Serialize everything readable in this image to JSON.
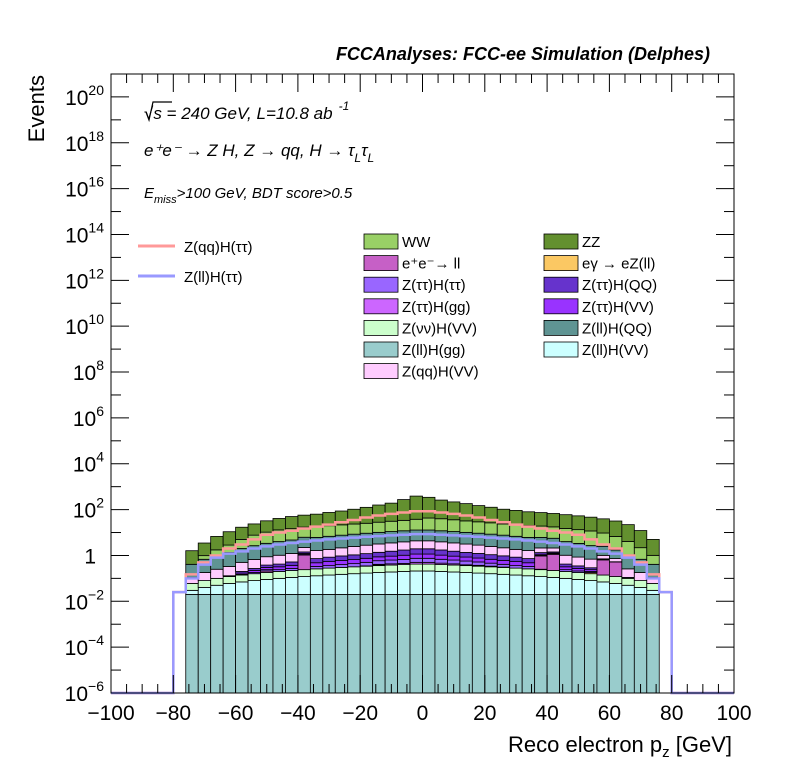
{
  "header": "FCCAnalyses: FCC-ee Simulation (Delphes)",
  "annotations": {
    "energy": "√s = 240 GeV, L=10.8 ab",
    "energy_sup": "-1",
    "process": "e⁺e⁻ → Z H, Z → qq, H → τ",
    "process_sub1": "L",
    "process_tau2": "τ",
    "process_sub2": "L",
    "cut_prefix": "E",
    "cut_sub": "miss",
    "cut_rest": ">100 GeV, BDT score>0.5"
  },
  "chart_data": {
    "type": "bar",
    "stacked": true,
    "log_y": true,
    "xlabel": "Reco electron p",
    "xlabel_sub": "z",
    "xlabel_unit": " [GeV]",
    "ylabel": "Events",
    "xlim": [
      -100,
      100
    ],
    "ylim": [
      1e-06,
      1e+21
    ],
    "x_ticks": [
      "−100",
      "−80",
      "−60",
      "−40",
      "−20",
      "0",
      "20",
      "40",
      "60",
      "80",
      "100"
    ],
    "y_ticks": [
      {
        "base": "10",
        "exp": "−6"
      },
      {
        "base": "10",
        "exp": "−4"
      },
      {
        "base": "10",
        "exp": "−2"
      },
      {
        "base": "1",
        "exp": ""
      },
      {
        "base": "10",
        "exp": "2"
      },
      {
        "base": "10",
        "exp": "4"
      },
      {
        "base": "10",
        "exp": "6"
      },
      {
        "base": "10",
        "exp": "8"
      },
      {
        "base": "10",
        "exp": "10"
      },
      {
        "base": "10",
        "exp": "12"
      },
      {
        "base": "10",
        "exp": "14"
      },
      {
        "base": "10",
        "exp": "16"
      },
      {
        "base": "10",
        "exp": "18"
      },
      {
        "base": "10",
        "exp": "20"
      }
    ],
    "bin_edges": [
      -80,
      -76,
      -72,
      -68,
      -64,
      -60,
      -56,
      -52,
      -48,
      -44,
      -40,
      -36,
      -32,
      -28,
      -24,
      -20,
      -16,
      -12,
      -8,
      -4,
      0,
      4,
      8,
      12,
      16,
      20,
      24,
      28,
      32,
      36,
      40,
      44,
      48,
      52,
      56,
      60,
      64,
      68,
      72,
      76,
      80
    ],
    "stack_order": [
      "Z(ll)H(gg)",
      "Z(ll)H(VV)",
      "Z(νν)H(VV)",
      "eγ → eZ(ll)",
      "e⁺e⁻→ ll",
      "Z(ττ)H(gg)",
      "Z(ττ)H(ττ)",
      "Z(ττ)H(VV)",
      "Z(ττ)H(QQ)",
      "Z(qq)H(VV)",
      "Z(ll)H(QQ)",
      "WW",
      "ZZ"
    ],
    "stack_series": [
      {
        "name": "WW",
        "color": "#99d066",
        "values": [
          0,
          0,
          0.3,
          0.7,
          1.5,
          3.0,
          5.0,
          7.0,
          9.0,
          10,
          11,
          12,
          13,
          14,
          15,
          16,
          18,
          20,
          22,
          25,
          30,
          28,
          25,
          22,
          20,
          18,
          16,
          15,
          14,
          13,
          12,
          11,
          10,
          9.0,
          7.0,
          5.0,
          3.0,
          1.5,
          0.6,
          0
        ]
      },
      {
        "name": "ZZ",
        "color": "#63902f",
        "values": [
          0,
          1.2,
          2.5,
          5.0,
          8.0,
          12,
          16,
          22,
          28,
          35,
          40,
          45,
          55,
          65,
          80,
          100,
          130,
          160,
          240,
          350,
          300,
          220,
          180,
          150,
          120,
          100,
          80,
          70,
          60,
          55,
          50,
          45,
          40,
          35,
          30,
          25,
          18,
          10,
          4.0,
          0
        ]
      },
      {
        "name": "e⁺e⁻→ ll",
        "color": "#c660c6",
        "values": [
          0,
          0,
          0,
          0,
          0,
          0,
          0,
          0.03,
          0,
          0,
          0.8,
          0,
          0,
          0,
          0,
          0,
          0,
          0,
          0,
          0,
          0,
          0,
          0,
          0,
          0,
          0,
          0,
          0,
          0,
          0.7,
          0.9,
          0,
          0,
          0,
          0.5,
          0.4,
          0,
          0,
          0,
          0
        ]
      },
      {
        "name": "eγ → eZ(ll)",
        "color": "#fbc863",
        "values": [
          0,
          0,
          0,
          0,
          0,
          0,
          0,
          0,
          0,
          0,
          0,
          0,
          0,
          0,
          0,
          0,
          0.02,
          0,
          0,
          0,
          0,
          0,
          0,
          0,
          0.01,
          0,
          0,
          0,
          0,
          0.01,
          0,
          0,
          0,
          0.02,
          0,
          0,
          0,
          0,
          0,
          0
        ]
      },
      {
        "name": "Z(ττ)H(ττ)",
        "color": "#9966ff",
        "values": [
          0,
          0,
          0,
          0,
          0.01,
          0.01,
          0.02,
          0.03,
          0.04,
          0.05,
          0.06,
          0.07,
          0.08,
          0.1,
          0.12,
          0.15,
          0.18,
          0.2,
          0.22,
          0.25,
          0.25,
          0.22,
          0.2,
          0.18,
          0.15,
          0.12,
          0.1,
          0.08,
          0.07,
          0.06,
          0.05,
          0.04,
          0.03,
          0.02,
          0.02,
          0.01,
          0.01,
          0,
          0,
          0
        ]
      },
      {
        "name": "Z(ττ)H(QQ)",
        "color": "#6633cc",
        "values": [
          0,
          0,
          0,
          0,
          0,
          0.03,
          0.05,
          0.08,
          0.1,
          0.15,
          0.2,
          0.25,
          0.3,
          0.35,
          0.4,
          0.45,
          0.5,
          0.6,
          0.7,
          0.8,
          0.8,
          0.7,
          0.6,
          0.5,
          0.45,
          0.4,
          0.35,
          0.3,
          0.25,
          0.2,
          0.15,
          0.1,
          0.08,
          0.05,
          0.03,
          0,
          0,
          0,
          0,
          0
        ]
      },
      {
        "name": "Z(ττ)H(gg)",
        "color": "#cc66ff",
        "values": [
          0,
          0,
          0,
          0,
          0,
          0,
          0,
          0,
          0,
          0,
          0,
          0,
          0,
          0,
          0,
          0.01,
          0.03,
          0.05,
          0.05,
          0.08,
          0.08,
          0.06,
          0.05,
          0.03,
          0.02,
          0.02,
          0.01,
          0,
          0,
          0,
          0,
          0,
          0,
          0,
          0,
          0,
          0,
          0,
          0,
          0
        ]
      },
      {
        "name": "Z(ττ)H(VV)",
        "color": "#9933ff",
        "values": [
          0,
          0,
          0,
          0,
          0,
          0.02,
          0.04,
          0.06,
          0.08,
          0.1,
          0.12,
          0.15,
          0.18,
          0.2,
          0.22,
          0.25,
          0.28,
          0.3,
          0.35,
          0.4,
          0.4,
          0.35,
          0.3,
          0.28,
          0.25,
          0.22,
          0.2,
          0.18,
          0.15,
          0.12,
          0.1,
          0.08,
          0.06,
          0.04,
          0.02,
          0,
          0,
          0,
          0,
          0
        ]
      },
      {
        "name": "Z(νν)H(VV)",
        "color": "#ccffcc",
        "values": [
          0,
          0.03,
          0.04,
          0.05,
          0.06,
          0.07,
          0.08,
          0.09,
          0.1,
          0.11,
          0.12,
          0.13,
          0.14,
          0.15,
          0.16,
          0.17,
          0.18,
          0.19,
          0.2,
          0.21,
          0.21,
          0.2,
          0.19,
          0.18,
          0.17,
          0.16,
          0.15,
          0.14,
          0.13,
          0.12,
          0.11,
          0.1,
          0.09,
          0.08,
          0.07,
          0.06,
          0.05,
          0.04,
          0.03,
          0
        ]
      },
      {
        "name": "Z(ll)H(QQ)",
        "color": "#5f9493",
        "values": [
          0,
          0.3,
          0.5,
          0.8,
          1.0,
          1.5,
          2.0,
          2.5,
          3.0,
          3.5,
          4.0,
          4.5,
          5.0,
          5.5,
          6.0,
          6.5,
          7.0,
          7.5,
          8.0,
          8.5,
          8.5,
          8.0,
          7.5,
          7.0,
          6.5,
          6.0,
          5.5,
          5.0,
          4.5,
          4.0,
          3.5,
          3.0,
          2.5,
          2.0,
          1.5,
          1.0,
          0.8,
          0.5,
          0.3,
          0
        ]
      },
      {
        "name": "Z(ll)H(gg)",
        "color": "#99cccc",
        "values": [
          0,
          0.02,
          0.02,
          0.02,
          0.02,
          0.02,
          0.02,
          0.02,
          0.02,
          0.02,
          0.02,
          0.02,
          0.02,
          0.02,
          0.02,
          0.02,
          0.02,
          0.02,
          0.02,
          0.02,
          0.02,
          0.02,
          0.02,
          0.02,
          0.02,
          0.02,
          0.02,
          0.02,
          0.02,
          0.02,
          0.02,
          0.02,
          0.02,
          0.02,
          0.02,
          0.02,
          0.02,
          0.02,
          0.02,
          0
        ]
      },
      {
        "name": "Z(ll)H(VV)",
        "color": "#ccffff",
        "values": [
          0,
          0.01,
          0.02,
          0.03,
          0.04,
          0.05,
          0.06,
          0.07,
          0.08,
          0.09,
          0.1,
          0.11,
          0.12,
          0.13,
          0.14,
          0.15,
          0.16,
          0.17,
          0.18,
          0.19,
          0.19,
          0.18,
          0.17,
          0.16,
          0.15,
          0.14,
          0.13,
          0.12,
          0.11,
          0.1,
          0.09,
          0.08,
          0.07,
          0.06,
          0.05,
          0.04,
          0.03,
          0.02,
          0.01,
          0
        ]
      },
      {
        "name": "Z(qq)H(VV)",
        "color": "#ffccff",
        "values": [
          0,
          0.05,
          0.1,
          0.15,
          0.2,
          0.3,
          0.4,
          0.5,
          0.6,
          0.7,
          0.8,
          0.9,
          1.0,
          1.2,
          1.4,
          1.6,
          1.8,
          2.0,
          2.2,
          2.4,
          2.4,
          2.2,
          2.0,
          1.8,
          1.6,
          1.4,
          1.2,
          1.0,
          0.9,
          0.8,
          0.7,
          0.6,
          0.5,
          0.4,
          0.3,
          0.2,
          0.15,
          0.1,
          0.05,
          0
        ]
      }
    ],
    "line_series": [
      {
        "name": "Z(qq)H(ττ)",
        "color": "#ff9999",
        "values": [
          0.025,
          0.15,
          0.5,
          1.0,
          2.0,
          3.0,
          5.0,
          8.0,
          10,
          12,
          15,
          18,
          22,
          28,
          35,
          45,
          55,
          65,
          75,
          85,
          85,
          75,
          65,
          55,
          45,
          35,
          28,
          22,
          18,
          15,
          12,
          10,
          8.0,
          5.0,
          3.0,
          2.0,
          1.0,
          0.5,
          0.15,
          0.025
        ]
      },
      {
        "name": "Z(ll)H(ττ)",
        "color": "#9999ff",
        "values": [
          0.025,
          0.1,
          0.4,
          0.8,
          1.2,
          1.5,
          2.0,
          2.5,
          3.0,
          3.5,
          4.0,
          4.5,
          5.0,
          5.5,
          6.0,
          6.5,
          7.0,
          7.5,
          8.0,
          8.5,
          8.5,
          8.0,
          7.5,
          7.0,
          6.5,
          6.0,
          5.5,
          5.0,
          4.5,
          4.0,
          3.5,
          3.0,
          2.5,
          2.0,
          1.5,
          1.2,
          0.8,
          0.4,
          0.1,
          0.025
        ]
      }
    ],
    "legend": {
      "lines": [
        "Z(qq)H(ττ)",
        "Z(ll)H(ττ)"
      ],
      "stack_rows": [
        [
          "WW",
          "ZZ"
        ],
        [
          "e⁺e⁻→ ll",
          "eγ → eZ(ll)"
        ],
        [
          "Z(ττ)H(ττ)",
          "Z(ττ)H(QQ)"
        ],
        [
          "Z(ττ)H(gg)",
          "Z(ττ)H(VV)"
        ],
        [
          "Z(νν)H(VV)",
          "Z(ll)H(QQ)"
        ],
        [
          "Z(ll)H(gg)",
          "Z(ll)H(VV)"
        ],
        [
          "Z(qq)H(VV)",
          ""
        ]
      ],
      "colors": {
        "WW": "#99d066",
        "ZZ": "#63902f",
        "e⁺e⁻→ ll": "#c660c6",
        "eγ → eZ(ll)": "#fbc863",
        "Z(ττ)H(ττ)": "#9966ff",
        "Z(ττ)H(QQ)": "#6633cc",
        "Z(ττ)H(gg)": "#cc66ff",
        "Z(ττ)H(VV)": "#9933ff",
        "Z(νν)H(VV)": "#ccffcc",
        "Z(ll)H(QQ)": "#5f9493",
        "Z(ll)H(gg)": "#99cccc",
        "Z(ll)H(VV)": "#ccffff",
        "Z(qq)H(VV)": "#ffccff"
      }
    }
  }
}
